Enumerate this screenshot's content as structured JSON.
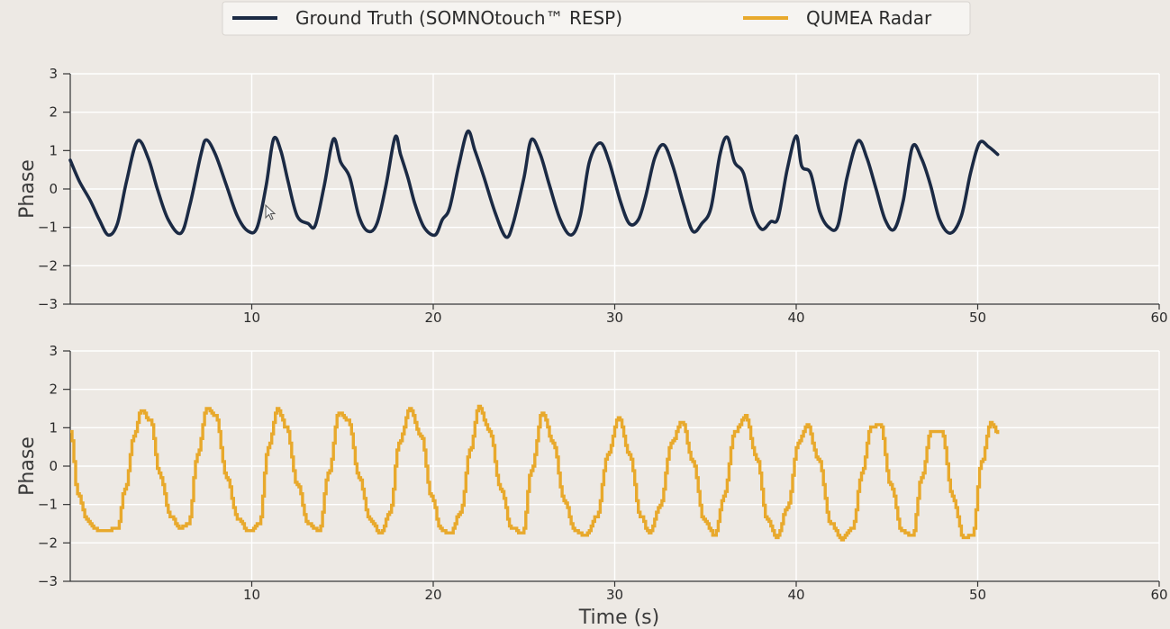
{
  "legend": {
    "entries": [
      {
        "label": "Ground Truth (SOMNOtouch™ RESP)",
        "color": "#1b2a44"
      },
      {
        "label": "QUMEA Radar",
        "color": "#e8a92c"
      }
    ]
  },
  "chart_data": [
    {
      "type": "line",
      "title": "",
      "xlabel": "",
      "ylabel": "Phase",
      "xlim": [
        0,
        60
      ],
      "ylim": [
        -3,
        3
      ],
      "xticks": [
        10,
        20,
        30,
        40,
        50,
        60
      ],
      "yticks": [
        -3,
        -2,
        -1,
        0,
        1,
        2,
        3
      ],
      "grid": true,
      "series": [
        {
          "name": "Ground Truth (SOMNOtouch™ RESP)",
          "color": "#1b2a44",
          "x": [
            0.0,
            0.5,
            1.1,
            1.6,
            2.1,
            2.6,
            3.1,
            3.7,
            4.3,
            4.8,
            5.4,
            6.1,
            6.6,
            7.2,
            7.5,
            8.0,
            8.6,
            9.2,
            9.8,
            10.3,
            10.8,
            11.2,
            11.6,
            12.0,
            12.5,
            13.1,
            13.5,
            14.0,
            14.5,
            14.9,
            15.4,
            15.9,
            16.4,
            16.9,
            17.4,
            17.9,
            18.2,
            18.6,
            19.0,
            19.5,
            20.1,
            20.5,
            20.9,
            21.4,
            21.9,
            22.3,
            22.8,
            23.4,
            24.0,
            24.4,
            25.0,
            25.4,
            25.9,
            26.4,
            27.0,
            27.6,
            28.1,
            28.6,
            29.2,
            29.7,
            30.3,
            30.8,
            31.3,
            31.7,
            32.2,
            32.7,
            33.2,
            33.8,
            34.3,
            34.8,
            35.3,
            35.8,
            36.2,
            36.6,
            37.1,
            37.6,
            38.1,
            38.6,
            39.0,
            39.5,
            40.0,
            40.3,
            40.8,
            41.3,
            41.8,
            42.3,
            42.8,
            43.4,
            43.9,
            44.4,
            44.9,
            45.4,
            45.9,
            46.4,
            46.9,
            47.4,
            47.9,
            48.5,
            49.1,
            49.6,
            50.1,
            50.6,
            51.1
          ],
          "values": [
            0.75,
            0.2,
            -0.3,
            -0.8,
            -1.2,
            -0.9,
            0.2,
            1.25,
            0.8,
            0.0,
            -0.8,
            -1.15,
            -0.4,
            0.9,
            1.28,
            0.9,
            0.1,
            -0.7,
            -1.1,
            -1.0,
            0.1,
            1.3,
            1.0,
            0.2,
            -0.7,
            -0.9,
            -0.95,
            0.1,
            1.3,
            0.7,
            0.3,
            -0.7,
            -1.1,
            -0.9,
            0.1,
            1.35,
            0.9,
            0.3,
            -0.4,
            -1.0,
            -1.2,
            -0.8,
            -0.5,
            0.6,
            1.5,
            1.0,
            0.3,
            -0.6,
            -1.25,
            -0.9,
            0.3,
            1.28,
            0.9,
            0.1,
            -0.8,
            -1.2,
            -0.7,
            0.7,
            1.2,
            0.7,
            -0.3,
            -0.9,
            -0.8,
            -0.2,
            0.8,
            1.15,
            0.6,
            -0.4,
            -1.1,
            -0.9,
            -0.5,
            0.9,
            1.35,
            0.7,
            0.4,
            -0.6,
            -1.05,
            -0.85,
            -0.75,
            0.5,
            1.38,
            0.6,
            0.4,
            -0.6,
            -1.0,
            -0.95,
            0.3,
            1.25,
            0.8,
            0.0,
            -0.8,
            -1.05,
            -0.3,
            1.1,
            0.8,
            0.1,
            -0.8,
            -1.15,
            -0.7,
            0.4,
            1.2,
            1.1,
            0.9
          ]
        }
      ]
    },
    {
      "type": "line",
      "title": "",
      "xlabel": "Time (s)",
      "ylabel": "Phase",
      "xlim": [
        0,
        60
      ],
      "ylim": [
        -3,
        3
      ],
      "xticks": [
        10,
        20,
        30,
        40,
        50,
        60
      ],
      "yticks": [
        -3,
        -2,
        -1,
        0,
        1,
        2,
        3
      ],
      "grid": true,
      "series": [
        {
          "name": "QUMEA Radar",
          "color": "#e8a92c",
          "x": [
            0.0,
            0.4,
            0.9,
            1.4,
            2.0,
            2.6,
            3.0,
            3.5,
            3.9,
            4.4,
            4.9,
            5.5,
            6.0,
            6.5,
            7.0,
            7.5,
            8.0,
            8.6,
            9.2,
            9.8,
            10.4,
            10.9,
            11.4,
            11.9,
            12.5,
            13.1,
            13.7,
            14.2,
            14.8,
            15.3,
            15.9,
            16.5,
            17.1,
            17.6,
            18.1,
            18.7,
            19.3,
            19.9,
            20.4,
            20.9,
            21.5,
            22.0,
            22.5,
            23.1,
            23.7,
            24.3,
            24.9,
            25.4,
            26.0,
            26.6,
            27.2,
            27.8,
            28.4,
            29.0,
            29.6,
            30.2,
            30.8,
            31.4,
            31.9,
            32.5,
            33.1,
            33.7,
            34.3,
            34.9,
            35.5,
            36.0,
            36.6,
            37.2,
            37.8,
            38.4,
            38.9,
            39.5,
            40.1,
            40.6,
            41.2,
            41.9,
            42.5,
            43.1,
            43.6,
            44.1,
            44.6,
            45.2,
            45.8,
            46.4,
            46.9,
            47.4,
            48.0,
            48.6,
            49.2,
            49.7,
            50.2,
            50.7,
            51.1
          ],
          "values": [
            0.9,
            -0.7,
            -1.4,
            -1.65,
            -1.7,
            -1.6,
            -0.6,
            0.8,
            1.45,
            1.2,
            -0.2,
            -1.3,
            -1.6,
            -1.5,
            0.3,
            1.5,
            1.3,
            -0.3,
            -1.35,
            -1.7,
            -1.5,
            0.5,
            1.5,
            1.0,
            -0.5,
            -1.5,
            -1.7,
            -0.2,
            1.4,
            1.2,
            -0.3,
            -1.4,
            -1.75,
            -1.2,
            0.6,
            1.5,
            0.8,
            -0.8,
            -1.65,
            -1.75,
            -1.2,
            0.4,
            1.55,
            0.9,
            -0.6,
            -1.6,
            -1.75,
            -0.1,
            1.4,
            0.6,
            -0.9,
            -1.7,
            -1.8,
            -1.3,
            0.3,
            1.25,
            0.3,
            -1.3,
            -1.75,
            -1.0,
            0.6,
            1.15,
            0.1,
            -1.4,
            -1.8,
            -0.8,
            0.9,
            1.3,
            0.2,
            -1.4,
            -1.85,
            -1.1,
            0.6,
            1.05,
            0.2,
            -1.5,
            -1.9,
            -1.6,
            -0.2,
            1.0,
            1.1,
            -0.5,
            -1.7,
            -1.8,
            -0.3,
            0.9,
            0.9,
            -0.8,
            -1.85,
            -1.8,
            0.1,
            1.15,
            0.85
          ]
        }
      ]
    }
  ]
}
